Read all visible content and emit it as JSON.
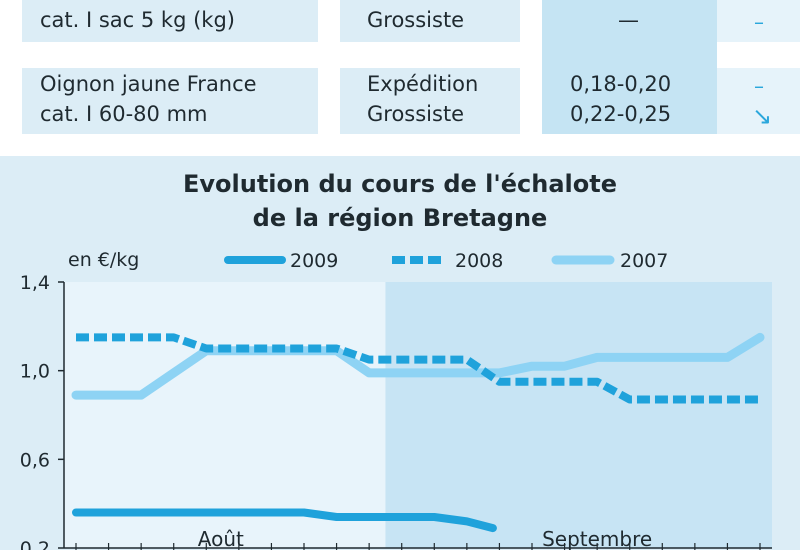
{
  "table": {
    "rows": [
      {
        "product": [
          "cat. I sac 5 kg (kg)"
        ],
        "stages": [
          "Grossiste"
        ],
        "prices": [
          "—"
        ],
        "trends": [
          "–"
        ]
      },
      {
        "product": [
          "Oignon jaune France",
          "cat. I 60-80 mm"
        ],
        "stages": [
          "Expédition",
          "Grossiste"
        ],
        "prices": [
          "0,18-0,20",
          "0,22-0,25"
        ],
        "trends": [
          "–",
          "↘"
        ]
      }
    ]
  },
  "colors": {
    "panel": "#dcedf6",
    "sept_band": "#c7e4f4",
    "series_2009": "#1fa2db",
    "series_2008": "#1fa2db",
    "series_2007": "#8ed3f4",
    "axis": "#1f2a30"
  },
  "chart_data": {
    "type": "line",
    "title": [
      "Evolution du cours de l'échalote",
      "de la région Bretagne"
    ],
    "ylabel": "en €/kg",
    "ylim": [
      0.2,
      1.4
    ],
    "yticks": [
      {
        "v": 0.2,
        "label": "0,2"
      },
      {
        "v": 0.6,
        "label": "0,6"
      },
      {
        "v": 1.0,
        "label": "1,0"
      },
      {
        "v": 1.4,
        "label": "1,4"
      }
    ],
    "xlim": [
      1,
      22
    ],
    "months": [
      {
        "label": "Août",
        "center": 6
      },
      {
        "label": "Septembre",
        "center": 17
      }
    ],
    "september_start": 10.5,
    "legend_position": "top",
    "series": [
      {
        "name": "2009",
        "style": "solid-dark",
        "points": [
          [
            1,
            0.36
          ],
          [
            2,
            0.36
          ],
          [
            3,
            0.36
          ],
          [
            4,
            0.36
          ],
          [
            5,
            0.36
          ],
          [
            6,
            0.36
          ],
          [
            7,
            0.36
          ],
          [
            8,
            0.36
          ],
          [
            9,
            0.34
          ],
          [
            10,
            0.34
          ],
          [
            11,
            0.34
          ],
          [
            12,
            0.34
          ],
          [
            13,
            0.32
          ],
          [
            13.8,
            0.29
          ]
        ]
      },
      {
        "name": "2008",
        "style": "dashed",
        "points": [
          [
            1,
            1.15
          ],
          [
            2,
            1.15
          ],
          [
            3,
            1.15
          ],
          [
            4,
            1.15
          ],
          [
            5,
            1.1
          ],
          [
            6,
            1.1
          ],
          [
            7,
            1.1
          ],
          [
            8,
            1.1
          ],
          [
            9,
            1.1
          ],
          [
            10,
            1.05
          ],
          [
            11,
            1.05
          ],
          [
            12,
            1.05
          ],
          [
            13,
            1.05
          ],
          [
            14,
            0.95
          ],
          [
            15,
            0.95
          ],
          [
            16,
            0.95
          ],
          [
            17,
            0.95
          ],
          [
            18,
            0.87
          ],
          [
            19,
            0.87
          ],
          [
            20,
            0.87
          ],
          [
            21,
            0.87
          ],
          [
            22,
            0.87
          ]
        ]
      },
      {
        "name": "2007",
        "style": "solid-light",
        "points": [
          [
            1,
            0.89
          ],
          [
            2,
            0.89
          ],
          [
            3,
            0.89
          ],
          [
            4,
            0.99
          ],
          [
            5,
            1.09
          ],
          [
            6,
            1.09
          ],
          [
            7,
            1.09
          ],
          [
            8,
            1.09
          ],
          [
            9,
            1.09
          ],
          [
            10,
            0.99
          ],
          [
            11,
            0.99
          ],
          [
            12,
            0.99
          ],
          [
            13,
            0.99
          ],
          [
            14,
            0.99
          ],
          [
            15,
            1.02
          ],
          [
            16,
            1.02
          ],
          [
            17,
            1.06
          ],
          [
            18,
            1.06
          ],
          [
            19,
            1.06
          ],
          [
            20,
            1.06
          ],
          [
            21,
            1.06
          ],
          [
            22,
            1.15
          ]
        ]
      }
    ]
  }
}
